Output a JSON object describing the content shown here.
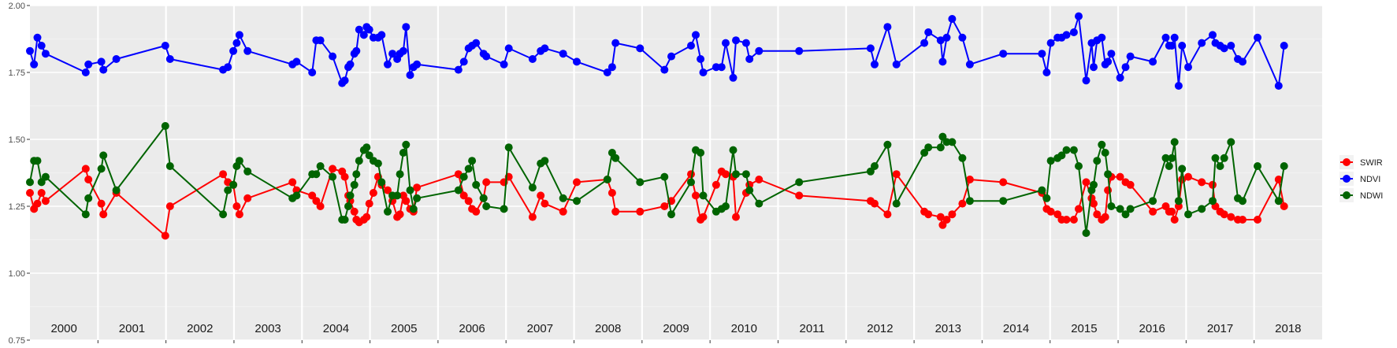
{
  "chart_data": {
    "type": "line",
    "title": "",
    "xlabel": "",
    "ylabel": "",
    "ylim": [
      0.75,
      2.0
    ],
    "y_ticks": [
      "0.75",
      "1.00",
      "1.25",
      "1.50",
      "1.75",
      "2.00"
    ],
    "x_range": [
      2000,
      2019
    ],
    "years": [
      "2000",
      "2001",
      "2002",
      "2003",
      "2004",
      "2005",
      "2006",
      "2007",
      "2008",
      "2009",
      "2010",
      "2011",
      "2012",
      "2013",
      "2014",
      "2015",
      "2016",
      "2017",
      "2018"
    ],
    "grid": true,
    "legend_position": "right",
    "legend": [
      "SWIR",
      "NDVI",
      "NDWI"
    ],
    "series": [
      {
        "name": "SWIR",
        "color": "#ff0000",
        "x": [
          2000.0,
          2000.06,
          2000.11,
          2000.17,
          2000.23,
          2000.82,
          2000.86,
          2001.05,
          2001.08,
          2001.27,
          2001.99,
          2002.06,
          2002.84,
          2002.91,
          2002.99,
          2003.04,
          2003.08,
          2003.2,
          2003.86,
          2003.92,
          2004.15,
          2004.21,
          2004.27,
          2004.45,
          2004.59,
          2004.63,
          2004.68,
          2004.71,
          2004.77,
          2004.8,
          2004.84,
          2004.91,
          2004.95,
          2004.99,
          2005.05,
          2005.12,
          2005.17,
          2005.26,
          2005.33,
          2005.4,
          2005.44,
          2005.49,
          2005.53,
          2005.59,
          2005.64,
          2005.69,
          2006.3,
          2006.38,
          2006.45,
          2006.5,
          2006.56,
          2006.67,
          2006.71,
          2006.97,
          2007.04,
          2007.39,
          2007.51,
          2007.57,
          2007.84,
          2008.04,
          2008.49,
          2008.56,
          2008.61,
          2008.97,
          2009.33,
          2009.43,
          2009.72,
          2009.79,
          2009.86,
          2009.9,
          2010.09,
          2010.17,
          2010.23,
          2010.34,
          2010.38,
          2010.53,
          2010.58,
          2010.72,
          2011.31,
          2012.36,
          2012.42,
          2012.61,
          2012.74,
          2013.15,
          2013.21,
          2013.39,
          2013.42,
          2013.48,
          2013.56,
          2013.71,
          2013.82,
          2014.31,
          2014.88,
          2014.95,
          2015.01,
          2015.11,
          2015.17,
          2015.24,
          2015.35,
          2015.42,
          2015.53,
          2015.61,
          2015.64,
          2015.69,
          2015.76,
          2015.81,
          2015.85,
          2015.9,
          2016.03,
          2016.11,
          2016.18,
          2016.51,
          2016.7,
          2016.75,
          2016.79,
          2016.83,
          2016.89,
          2016.94,
          2017.03,
          2017.23,
          2017.39,
          2017.43,
          2017.5,
          2017.56,
          2017.66,
          2017.76,
          2017.83,
          2018.05,
          2018.36,
          2018.44
        ],
        "y": [
          1.3,
          1.24,
          1.26,
          1.3,
          1.27,
          1.39,
          1.35,
          1.26,
          1.22,
          1.3,
          1.14,
          1.25,
          1.37,
          1.34,
          1.33,
          1.25,
          1.22,
          1.28,
          1.34,
          1.31,
          1.29,
          1.27,
          1.25,
          1.39,
          1.38,
          1.36,
          1.29,
          1.27,
          1.23,
          1.2,
          1.19,
          1.2,
          1.21,
          1.26,
          1.3,
          1.36,
          1.33,
          1.31,
          1.27,
          1.21,
          1.22,
          1.29,
          1.27,
          1.24,
          1.23,
          1.32,
          1.37,
          1.29,
          1.27,
          1.24,
          1.23,
          1.28,
          1.34,
          1.34,
          1.36,
          1.21,
          1.29,
          1.26,
          1.23,
          1.34,
          1.35,
          1.3,
          1.23,
          1.23,
          1.25,
          1.27,
          1.37,
          1.29,
          1.2,
          1.21,
          1.33,
          1.38,
          1.37,
          1.36,
          1.21,
          1.3,
          1.33,
          1.35,
          1.29,
          1.27,
          1.26,
          1.22,
          1.37,
          1.23,
          1.22,
          1.21,
          1.18,
          1.2,
          1.22,
          1.26,
          1.35,
          1.34,
          1.3,
          1.24,
          1.23,
          1.22,
          1.2,
          1.2,
          1.2,
          1.24,
          1.34,
          1.28,
          1.26,
          1.22,
          1.2,
          1.21,
          1.31,
          1.36,
          1.36,
          1.34,
          1.33,
          1.23,
          1.25,
          1.23,
          1.23,
          1.2,
          1.25,
          1.35,
          1.36,
          1.34,
          1.33,
          1.25,
          1.23,
          1.22,
          1.21,
          1.2,
          1.2,
          1.2,
          1.35,
          1.25
        ]
      },
      {
        "name": "NDVI",
        "color": "#0000ff",
        "x": [
          2000.0,
          2000.06,
          2000.11,
          2000.17,
          2000.23,
          2000.82,
          2000.86,
          2001.05,
          2001.08,
          2001.27,
          2001.99,
          2002.06,
          2002.84,
          2002.91,
          2002.99,
          2003.04,
          2003.08,
          2003.2,
          2003.86,
          2003.92,
          2004.15,
          2004.21,
          2004.27,
          2004.45,
          2004.59,
          2004.63,
          2004.68,
          2004.71,
          2004.77,
          2004.8,
          2004.84,
          2004.91,
          2004.95,
          2004.99,
          2005.05,
          2005.12,
          2005.17,
          2005.26,
          2005.33,
          2005.4,
          2005.44,
          2005.49,
          2005.53,
          2005.59,
          2005.64,
          2005.69,
          2006.3,
          2006.38,
          2006.45,
          2006.5,
          2006.56,
          2006.67,
          2006.71,
          2006.97,
          2007.04,
          2007.39,
          2007.51,
          2007.57,
          2007.84,
          2008.04,
          2008.49,
          2008.56,
          2008.61,
          2008.97,
          2009.33,
          2009.43,
          2009.72,
          2009.79,
          2009.86,
          2009.9,
          2010.09,
          2010.17,
          2010.23,
          2010.34,
          2010.38,
          2010.53,
          2010.58,
          2010.72,
          2011.31,
          2012.36,
          2012.42,
          2012.61,
          2012.74,
          2013.15,
          2013.21,
          2013.39,
          2013.42,
          2013.48,
          2013.56,
          2013.71,
          2013.82,
          2014.31,
          2014.88,
          2014.95,
          2015.01,
          2015.11,
          2015.17,
          2015.24,
          2015.35,
          2015.42,
          2015.53,
          2015.61,
          2015.64,
          2015.69,
          2015.76,
          2015.81,
          2015.85,
          2015.9,
          2016.03,
          2016.11,
          2016.18,
          2016.51,
          2016.7,
          2016.75,
          2016.79,
          2016.83,
          2016.89,
          2016.94,
          2017.03,
          2017.23,
          2017.39,
          2017.43,
          2017.5,
          2017.56,
          2017.66,
          2017.76,
          2017.83,
          2018.05,
          2018.36,
          2018.44
        ],
        "y": [
          1.83,
          1.78,
          1.88,
          1.85,
          1.82,
          1.75,
          1.78,
          1.79,
          1.76,
          1.8,
          1.85,
          1.8,
          1.76,
          1.77,
          1.83,
          1.86,
          1.89,
          1.83,
          1.78,
          1.79,
          1.75,
          1.87,
          1.87,
          1.81,
          1.71,
          1.72,
          1.77,
          1.78,
          1.82,
          1.83,
          1.91,
          1.89,
          1.92,
          1.91,
          1.88,
          1.88,
          1.89,
          1.78,
          1.82,
          1.8,
          1.82,
          1.83,
          1.92,
          1.74,
          1.77,
          1.78,
          1.76,
          1.79,
          1.84,
          1.85,
          1.86,
          1.82,
          1.81,
          1.78,
          1.84,
          1.8,
          1.83,
          1.84,
          1.82,
          1.79,
          1.75,
          1.77,
          1.86,
          1.84,
          1.76,
          1.81,
          1.85,
          1.89,
          1.8,
          1.75,
          1.77,
          1.77,
          1.86,
          1.73,
          1.87,
          1.86,
          1.8,
          1.83,
          1.83,
          1.84,
          1.78,
          1.92,
          1.78,
          1.86,
          1.9,
          1.87,
          1.79,
          1.88,
          1.95,
          1.88,
          1.78,
          1.82,
          1.82,
          1.75,
          1.86,
          1.88,
          1.88,
          1.89,
          1.9,
          1.96,
          1.72,
          1.86,
          1.77,
          1.87,
          1.88,
          1.78,
          1.79,
          1.82,
          1.73,
          1.77,
          1.81,
          1.79,
          1.88,
          1.85,
          1.85,
          1.88,
          1.7,
          1.85,
          1.77,
          1.86,
          1.89,
          1.86,
          1.85,
          1.84,
          1.85,
          1.8,
          1.79,
          1.88,
          1.7,
          1.85
        ]
      },
      {
        "name": "NDWI",
        "color": "#006400",
        "x": [
          2000.0,
          2000.06,
          2000.11,
          2000.17,
          2000.23,
          2000.82,
          2000.86,
          2001.05,
          2001.08,
          2001.27,
          2001.99,
          2002.06,
          2002.84,
          2002.91,
          2002.99,
          2003.04,
          2003.08,
          2003.2,
          2003.86,
          2003.92,
          2004.15,
          2004.21,
          2004.27,
          2004.45,
          2004.59,
          2004.63,
          2004.68,
          2004.71,
          2004.77,
          2004.8,
          2004.84,
          2004.91,
          2004.95,
          2004.99,
          2005.05,
          2005.12,
          2005.17,
          2005.26,
          2005.33,
          2005.4,
          2005.44,
          2005.49,
          2005.53,
          2005.59,
          2005.64,
          2005.69,
          2006.3,
          2006.38,
          2006.45,
          2006.5,
          2006.56,
          2006.67,
          2006.71,
          2006.97,
          2007.04,
          2007.39,
          2007.51,
          2007.57,
          2007.84,
          2008.04,
          2008.49,
          2008.56,
          2008.61,
          2008.97,
          2009.33,
          2009.43,
          2009.72,
          2009.79,
          2009.86,
          2009.9,
          2010.09,
          2010.17,
          2010.23,
          2010.34,
          2010.38,
          2010.53,
          2010.58,
          2010.72,
          2011.31,
          2012.36,
          2012.42,
          2012.61,
          2012.74,
          2013.15,
          2013.21,
          2013.39,
          2013.42,
          2013.48,
          2013.56,
          2013.71,
          2013.82,
          2014.31,
          2014.88,
          2014.95,
          2015.01,
          2015.11,
          2015.17,
          2015.24,
          2015.35,
          2015.42,
          2015.53,
          2015.61,
          2015.64,
          2015.69,
          2015.76,
          2015.81,
          2015.85,
          2015.9,
          2016.03,
          2016.11,
          2016.18,
          2016.51,
          2016.7,
          2016.75,
          2016.79,
          2016.83,
          2016.89,
          2016.94,
          2017.03,
          2017.23,
          2017.39,
          2017.43,
          2017.5,
          2017.56,
          2017.66,
          2017.76,
          2017.83,
          2018.05,
          2018.36,
          2018.44
        ],
        "y": [
          1.34,
          1.42,
          1.42,
          1.34,
          1.36,
          1.22,
          1.28,
          1.39,
          1.44,
          1.31,
          1.55,
          1.4,
          1.22,
          1.31,
          1.33,
          1.4,
          1.42,
          1.38,
          1.28,
          1.29,
          1.37,
          1.37,
          1.4,
          1.36,
          1.2,
          1.2,
          1.25,
          1.29,
          1.33,
          1.37,
          1.42,
          1.46,
          1.47,
          1.44,
          1.42,
          1.41,
          1.34,
          1.23,
          1.29,
          1.29,
          1.37,
          1.45,
          1.48,
          1.31,
          1.24,
          1.28,
          1.31,
          1.36,
          1.39,
          1.42,
          1.33,
          1.28,
          1.25,
          1.24,
          1.47,
          1.32,
          1.41,
          1.42,
          1.28,
          1.27,
          1.35,
          1.45,
          1.43,
          1.34,
          1.36,
          1.22,
          1.34,
          1.46,
          1.45,
          1.29,
          1.23,
          1.24,
          1.25,
          1.46,
          1.37,
          1.37,
          1.31,
          1.26,
          1.34,
          1.38,
          1.4,
          1.48,
          1.26,
          1.45,
          1.47,
          1.47,
          1.51,
          1.49,
          1.49,
          1.43,
          1.27,
          1.27,
          1.31,
          1.28,
          1.42,
          1.43,
          1.44,
          1.46,
          1.46,
          1.4,
          1.15,
          1.31,
          1.33,
          1.42,
          1.48,
          1.45,
          1.37,
          1.25,
          1.24,
          1.22,
          1.24,
          1.27,
          1.43,
          1.4,
          1.43,
          1.49,
          1.27,
          1.39,
          1.22,
          1.24,
          1.27,
          1.43,
          1.4,
          1.43,
          1.49,
          1.28,
          1.27,
          1.4,
          1.27,
          1.4
        ]
      }
    ]
  }
}
